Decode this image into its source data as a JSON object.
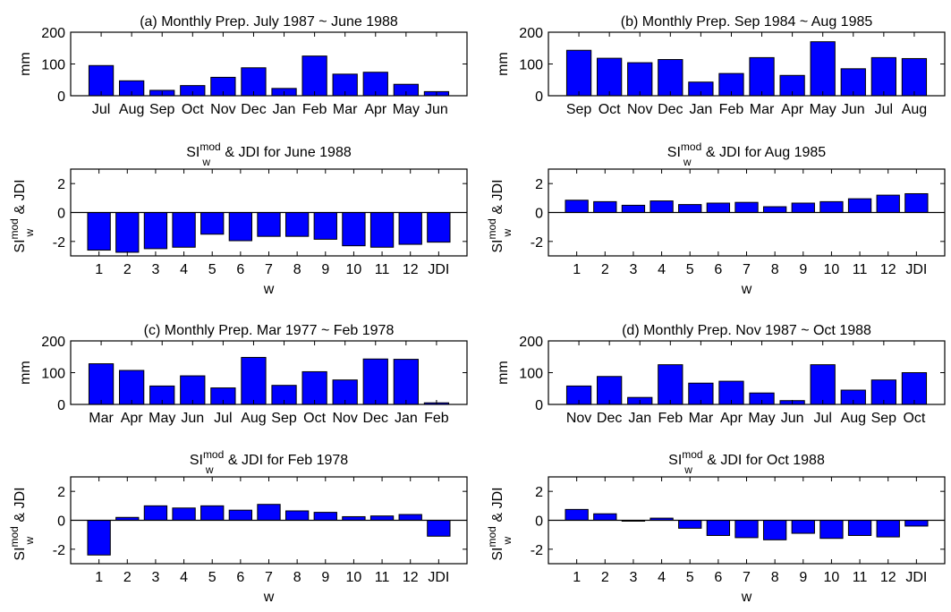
{
  "colors": {
    "bar": "#0000ff",
    "stroke": "#000000",
    "background": "#ffffff"
  },
  "chart_data": [
    {
      "id": "a-prep",
      "type": "bar",
      "title": "(a) Monthly Prep. July 1987 ~ June 1988",
      "ylabel": "mm",
      "xlabel": "",
      "ylim": [
        0,
        200
      ],
      "yticks": [
        "0",
        "100",
        "200"
      ],
      "categories": [
        "Jul",
        "Aug",
        "Sep",
        "Oct",
        "Nov",
        "Dec",
        "Jan",
        "Feb",
        "Mar",
        "Apr",
        "May",
        "Jun"
      ],
      "values": [
        95,
        47,
        17,
        32,
        58,
        88,
        23,
        125,
        68,
        74,
        36,
        13
      ],
      "grid": false
    },
    {
      "id": "a-si",
      "type": "bar",
      "title_base": "SI",
      "title_sup": "mod",
      "title_sub": "w",
      "title_rest": " & JDI for June 1988",
      "ylabel_base": "SI",
      "ylabel_sup": "mod",
      "ylabel_sub": "w",
      "ylabel_rest": " & JDI",
      "xlabel": "w",
      "ylim": [
        -3,
        3
      ],
      "yticks": [
        "-2",
        "0",
        "2"
      ],
      "categories": [
        "1",
        "2",
        "3",
        "4",
        "5",
        "6",
        "7",
        "8",
        "9",
        "10",
        "11",
        "12",
        "JDI"
      ],
      "values": [
        -2.6,
        -2.75,
        -2.5,
        -2.4,
        -1.5,
        -1.95,
        -1.65,
        -1.65,
        -1.85,
        -2.3,
        -2.4,
        -2.2,
        -2.05
      ],
      "grid": false
    },
    {
      "id": "b-prep",
      "type": "bar",
      "title": "(b) Monthly Prep. Sep 1984 ~ Aug 1985",
      "ylabel": "mm",
      "xlabel": "",
      "ylim": [
        0,
        200
      ],
      "yticks": [
        "0",
        "100",
        "200"
      ],
      "categories": [
        "Sep",
        "Oct",
        "Nov",
        "Dec",
        "Jan",
        "Feb",
        "Mar",
        "Apr",
        "May",
        "Jun",
        "Jul",
        "Aug"
      ],
      "values": [
        143,
        118,
        104,
        114,
        43,
        70,
        120,
        64,
        170,
        85,
        120,
        117
      ],
      "grid": false
    },
    {
      "id": "b-si",
      "type": "bar",
      "title_base": "SI",
      "title_sup": "mod",
      "title_sub": "w",
      "title_rest": " & JDI for Aug 1985",
      "ylabel_base": "SI",
      "ylabel_sup": "mod",
      "ylabel_sub": "w",
      "ylabel_rest": " & JDI",
      "xlabel": "w",
      "ylim": [
        -3,
        3
      ],
      "yticks": [
        "-2",
        "0",
        "2"
      ],
      "categories": [
        "1",
        "2",
        "3",
        "4",
        "5",
        "6",
        "7",
        "8",
        "9",
        "10",
        "11",
        "12",
        "JDI"
      ],
      "values": [
        0.85,
        0.75,
        0.5,
        0.8,
        0.55,
        0.65,
        0.7,
        0.4,
        0.65,
        0.75,
        0.95,
        1.2,
        1.3
      ],
      "grid": false
    },
    {
      "id": "c-prep",
      "type": "bar",
      "title": "(c) Monthly Prep. Mar 1977 ~ Feb 1978",
      "ylabel": "mm",
      "xlabel": "",
      "ylim": [
        0,
        200
      ],
      "yticks": [
        "0",
        "100",
        "200"
      ],
      "categories": [
        "Mar",
        "Apr",
        "May",
        "Jun",
        "Jul",
        "Aug",
        "Sep",
        "Oct",
        "Nov",
        "Dec",
        "Jan",
        "Feb"
      ],
      "values": [
        128,
        107,
        58,
        90,
        52,
        148,
        60,
        103,
        77,
        143,
        142,
        5
      ],
      "grid": false
    },
    {
      "id": "c-si",
      "type": "bar",
      "title_base": "SI",
      "title_sup": "mod",
      "title_sub": "w",
      "title_rest": " & JDI for Feb 1978",
      "ylabel_base": "SI",
      "ylabel_sup": "mod",
      "ylabel_sub": "w",
      "ylabel_rest": " & JDI",
      "xlabel": "w",
      "ylim": [
        -3,
        3
      ],
      "yticks": [
        "-2",
        "0",
        "2"
      ],
      "categories": [
        "1",
        "2",
        "3",
        "4",
        "5",
        "6",
        "7",
        "8",
        "9",
        "10",
        "11",
        "12",
        "JDI"
      ],
      "values": [
        -2.4,
        0.2,
        1.0,
        0.85,
        1.0,
        0.7,
        1.1,
        0.65,
        0.55,
        0.25,
        0.3,
        0.4,
        -1.1
      ],
      "grid": false
    },
    {
      "id": "d-prep",
      "type": "bar",
      "title": "(d) Monthly Prep. Nov 1987 ~ Oct 1988",
      "ylabel": "mm",
      "xlabel": "",
      "ylim": [
        0,
        200
      ],
      "yticks": [
        "0",
        "100",
        "200"
      ],
      "categories": [
        "Nov",
        "Dec",
        "Jan",
        "Feb",
        "Mar",
        "Apr",
        "May",
        "Jun",
        "Jul",
        "Aug",
        "Sep",
        "Oct"
      ],
      "values": [
        58,
        88,
        22,
        125,
        67,
        73,
        36,
        12,
        125,
        45,
        77,
        100
      ],
      "grid": false
    },
    {
      "id": "d-si",
      "type": "bar",
      "title_base": "SI",
      "title_sup": "mod",
      "title_sub": "w",
      "title_rest": " & JDI for Oct 1988",
      "ylabel_base": "SI",
      "ylabel_sup": "mod",
      "ylabel_sub": "w",
      "ylabel_rest": " & JDI",
      "xlabel": "w",
      "ylim": [
        -3,
        3
      ],
      "yticks": [
        "-2",
        "0",
        "2"
      ],
      "categories": [
        "1",
        "2",
        "3",
        "4",
        "5",
        "6",
        "7",
        "8",
        "9",
        "10",
        "11",
        "12",
        "JDI"
      ],
      "values": [
        0.75,
        0.45,
        -0.05,
        0.15,
        -0.55,
        -1.05,
        -1.2,
        -1.35,
        -0.9,
        -1.25,
        -1.05,
        -1.15,
        -0.4
      ],
      "grid": false
    }
  ]
}
